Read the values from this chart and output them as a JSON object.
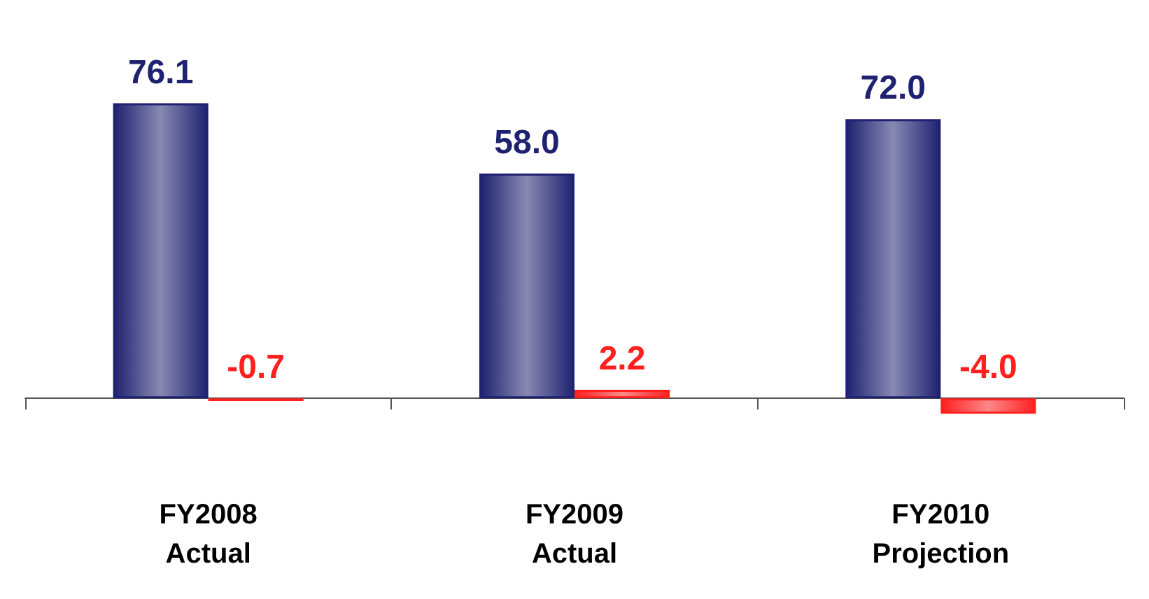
{
  "chart_data": {
    "type": "bar",
    "categories": [
      "FY2008\nActual",
      "FY2009\nActual",
      "FY2010\nProjection"
    ],
    "series": [
      {
        "color": "#1f2270",
        "values": [
          76.1,
          58.0,
          72.0
        ],
        "value_labels": [
          "76.1",
          "58.0",
          "72.0"
        ]
      },
      {
        "color": "#ff2020",
        "values": [
          -0.7,
          2.2,
          -4.0
        ],
        "value_labels": [
          "-0.7",
          "2.2",
          "-4.0"
        ]
      }
    ]
  }
}
